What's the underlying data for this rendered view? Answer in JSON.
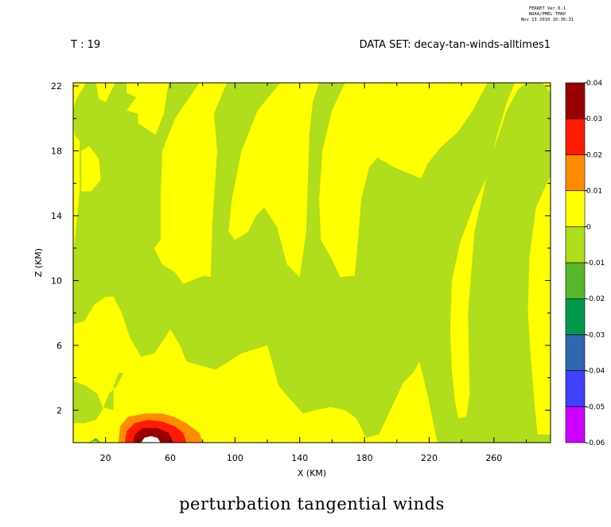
{
  "header": {
    "ferret_version": "FERRET Ver.6.1",
    "ferret_org": "NOAA/PMEL TMAP",
    "ferret_date": "Nov 13 2010 16:36:31",
    "time_label": "T : 19",
    "dataset_label": "DATA SET: decay-tan-winds-alltimes1"
  },
  "chart_data": {
    "type": "heatmap",
    "title": "perturbation tangential winds",
    "xlabel": "X (KM)",
    "ylabel": "Z (KM)",
    "xlim": [
      0,
      295
    ],
    "ylim": [
      0,
      22.2
    ],
    "x_ticks": [
      20,
      60,
      100,
      140,
      180,
      220,
      260
    ],
    "y_ticks": [
      2,
      6,
      10,
      14,
      18,
      22
    ],
    "grid": false,
    "legend": "right colorbar",
    "colorbar": {
      "levels": [
        -0.06,
        -0.05,
        -0.04,
        -0.03,
        -0.02,
        -0.01,
        0,
        0.01,
        0.02,
        0.03,
        0.04
      ],
      "labels": [
        "-0.06",
        "-0.05",
        "-0.04",
        "-0.03",
        "-0.02",
        "-0.01",
        "0",
        "0.01",
        "0.02",
        "0.03",
        "0.04"
      ],
      "colors": [
        "#cc00ff",
        "#4040ff",
        "#2f67b0",
        "#00994c",
        "#56b828",
        "#b0dd1c",
        "#ffff00",
        "#ff8c00",
        "#ff1a00",
        "#990000"
      ]
    },
    "regions": [
      {
        "level": "0 to 0.01",
        "color": "#ffff00",
        "points": [
          [
            0,
            22.2
          ],
          [
            295,
            22.2
          ],
          [
            295,
            0
          ],
          [
            0,
            0
          ]
        ]
      },
      {
        "level": "-0.01 to 0",
        "color": "#b0dd1c",
        "points": [
          [
            8,
            22.2
          ],
          [
            33,
            22.2
          ],
          [
            33,
            21.6
          ],
          [
            39,
            21.3
          ],
          [
            33,
            20.5
          ],
          [
            40,
            20.3
          ],
          [
            40,
            19.7
          ],
          [
            51,
            19
          ],
          [
            56,
            20.3
          ],
          [
            59,
            22.2
          ],
          [
            78,
            22.2
          ],
          [
            63,
            20
          ],
          [
            55,
            18
          ],
          [
            54,
            15
          ],
          [
            54,
            12.5
          ],
          [
            50,
            12
          ],
          [
            55,
            11
          ],
          [
            63,
            10.5
          ],
          [
            68,
            9.8
          ],
          [
            81,
            10.3
          ],
          [
            85,
            10.2
          ],
          [
            86,
            13.5
          ],
          [
            89,
            18
          ],
          [
            87,
            20.3
          ],
          [
            95,
            22.2
          ],
          [
            128,
            22.2
          ],
          [
            114,
            20.5
          ],
          [
            104,
            18
          ],
          [
            98,
            15
          ],
          [
            96,
            13
          ],
          [
            100,
            12.5
          ],
          [
            108,
            13
          ],
          [
            113,
            14
          ],
          [
            118,
            14.5
          ],
          [
            126,
            13.3
          ],
          [
            132,
            11
          ],
          [
            140,
            10.2
          ],
          [
            144,
            13
          ],
          [
            145,
            16
          ],
          [
            146,
            19
          ],
          [
            148,
            21
          ],
          [
            152,
            22.2
          ],
          [
            168,
            22.2
          ],
          [
            160,
            20.5
          ],
          [
            154,
            18
          ],
          [
            152,
            15
          ],
          [
            153,
            12.5
          ],
          [
            160,
            11.3
          ],
          [
            165,
            10.2
          ],
          [
            174,
            10.3
          ],
          [
            176,
            12.5
          ],
          [
            178,
            15
          ],
          [
            183,
            17
          ],
          [
            188,
            17.6
          ],
          [
            198,
            17
          ],
          [
            215,
            16.3
          ],
          [
            219,
            17.2
          ],
          [
            227,
            18.2
          ],
          [
            238,
            19.2
          ],
          [
            247,
            20.5
          ],
          [
            256,
            22.2
          ],
          [
            273,
            22.2
          ],
          [
            268,
            21
          ],
          [
            262,
            19
          ],
          [
            256,
            16.5
          ],
          [
            247,
            14.5
          ],
          [
            239,
            12.3
          ],
          [
            234,
            10
          ],
          [
            233,
            7
          ],
          [
            234,
            4.5
          ],
          [
            236,
            2.5
          ],
          [
            238,
            1.5
          ],
          [
            243,
            1.6
          ],
          [
            245,
            3
          ],
          [
            244,
            8
          ],
          [
            248,
            13
          ],
          [
            258,
            17.5
          ],
          [
            268,
            20.5
          ],
          [
            275,
            21.8
          ],
          [
            280,
            22.2
          ],
          [
            290,
            22.2
          ],
          [
            295,
            21.6
          ],
          [
            295,
            16.5
          ],
          [
            286,
            14.5
          ],
          [
            282,
            11.5
          ],
          [
            281,
            8
          ],
          [
            283,
            5
          ],
          [
            285,
            2.5
          ],
          [
            287,
            0.5
          ],
          [
            295,
            0.5
          ],
          [
            295,
            0
          ],
          [
            225,
            0
          ],
          [
            220,
            2.5
          ],
          [
            214,
            5
          ],
          [
            210,
            4.3
          ],
          [
            204,
            3.7
          ],
          [
            196,
            2
          ],
          [
            189,
            0.5
          ],
          [
            181,
            0.3
          ],
          [
            175,
            1.5
          ],
          [
            168,
            2
          ],
          [
            159,
            2.2
          ],
          [
            150,
            2
          ],
          [
            142,
            1.8
          ],
          [
            133,
            2.8
          ],
          [
            127,
            3.5
          ],
          [
            120,
            6
          ],
          [
            104,
            5.5
          ],
          [
            88,
            4.5
          ],
          [
            77,
            4.8
          ],
          [
            70,
            5
          ],
          [
            66,
            6
          ],
          [
            60,
            7
          ],
          [
            57,
            6.5
          ],
          [
            50,
            5.5
          ],
          [
            42,
            5.3
          ],
          [
            35,
            6.5
          ],
          [
            30,
            8
          ],
          [
            25,
            9
          ],
          [
            20,
            9
          ],
          [
            13,
            8.5
          ],
          [
            7,
            7.5
          ],
          [
            0,
            7.3
          ],
          [
            0,
            11.5
          ],
          [
            2,
            13.5
          ],
          [
            4,
            15.5
          ],
          [
            4,
            17.5
          ],
          [
            4,
            18.6
          ],
          [
            1,
            19
          ],
          [
            0,
            20.5
          ],
          [
            2,
            21.2
          ]
        ]
      },
      {
        "level": "0 to 0.01",
        "color": "#ffff00",
        "points": [
          [
            5,
            18
          ],
          [
            10,
            18.3
          ],
          [
            16,
            17.5
          ],
          [
            17,
            16.2
          ],
          [
            11,
            15.5
          ],
          [
            5,
            15.5
          ]
        ]
      },
      {
        "level": "0 to 0.01",
        "color": "#ffff00",
        "points": [
          [
            14,
            22.2
          ],
          [
            26,
            22.2
          ],
          [
            20,
            21
          ],
          [
            16,
            21.2
          ]
        ]
      },
      {
        "level": "-0.01 to 0",
        "color": "#b0dd1c",
        "points": [
          [
            0,
            3.8
          ],
          [
            8,
            3.5
          ],
          [
            15,
            3
          ],
          [
            18,
            2.2
          ],
          [
            25,
            2
          ],
          [
            25,
            3.5
          ],
          [
            28,
            4.3
          ],
          [
            31,
            4.3
          ],
          [
            27,
            3.5
          ],
          [
            22,
            3
          ],
          [
            18,
            2
          ],
          [
            14,
            1.4
          ],
          [
            7,
            1.2
          ],
          [
            0,
            1.2
          ]
        ]
      },
      {
        "level": "-0.02 to -0.01",
        "color": "#56b828",
        "points": [
          [
            10,
            0
          ],
          [
            14,
            0.3
          ],
          [
            17,
            0
          ],
          [
            13,
            0.1
          ]
        ]
      },
      {
        "level": "0.01 to 0.02",
        "color": "#ff8c00",
        "points": [
          [
            28,
            0
          ],
          [
            29,
            1
          ],
          [
            34,
            1.6
          ],
          [
            45,
            1.8
          ],
          [
            55,
            1.8
          ],
          [
            62,
            1.6
          ],
          [
            70,
            1.2
          ],
          [
            78,
            0.6
          ],
          [
            80,
            0
          ]
        ]
      },
      {
        "level": "0.02 to 0.03",
        "color": "#ff1a00",
        "points": [
          [
            32,
            0
          ],
          [
            33,
            0.7
          ],
          [
            38,
            1.2
          ],
          [
            46,
            1.4
          ],
          [
            55,
            1.3
          ],
          [
            63,
            1
          ],
          [
            68,
            0.6
          ],
          [
            70,
            0
          ]
        ]
      },
      {
        "level": "0.03 to 0.04",
        "color": "#990000",
        "points": [
          [
            37,
            0
          ],
          [
            38,
            0.5
          ],
          [
            43,
            0.9
          ],
          [
            52,
            0.9
          ],
          [
            59,
            0.6
          ],
          [
            62,
            0
          ]
        ]
      },
      {
        "level": "> 0.04",
        "color": "#ffffff",
        "points": [
          [
            42,
            0
          ],
          [
            44,
            0.3
          ],
          [
            48,
            0.4
          ],
          [
            52,
            0.3
          ],
          [
            54,
            0
          ]
        ]
      }
    ]
  }
}
